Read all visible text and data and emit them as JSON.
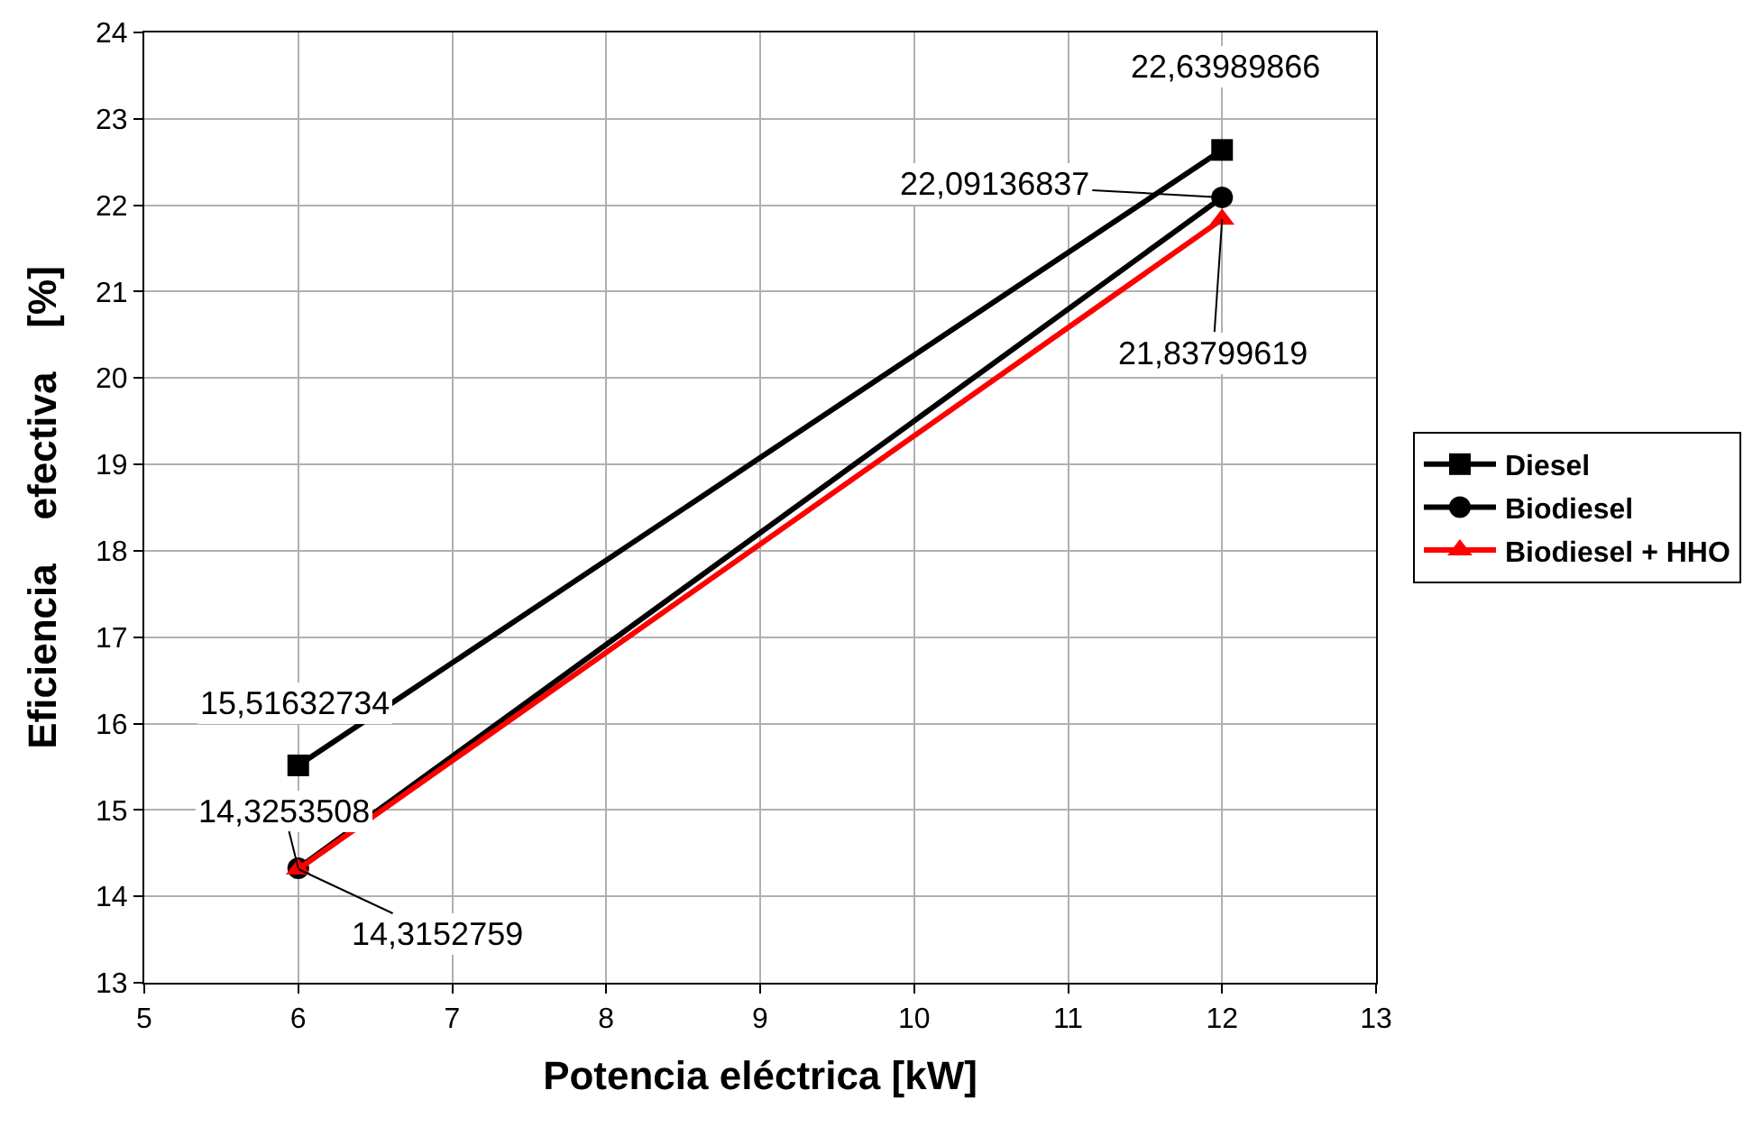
{
  "chart_data": {
    "type": "line",
    "xlabel": "Potencia eléctrica [kW]",
    "ylabel": "Eficiencia    efectiva    [%]",
    "x": [
      6,
      12
    ],
    "series": [
      {
        "name": "Diesel",
        "color": "#000000",
        "marker": "square",
        "values": [
          15.51632734,
          22.63989866
        ],
        "value_labels": [
          "15,51632734",
          "22,63989866"
        ]
      },
      {
        "name": "Biodiesel",
        "color": "#000000",
        "marker": "circle",
        "values": [
          14.3253508,
          22.09136837
        ],
        "value_labels": [
          "14,3253508",
          "22,09136837"
        ]
      },
      {
        "name": "Biodiesel + HHO",
        "color": "#ff0000",
        "marker": "triangle",
        "values": [
          14.3152759,
          21.83799619
        ],
        "value_labels": [
          "14,3152759",
          "21,83799619"
        ]
      }
    ],
    "xlim": [
      5,
      13
    ],
    "xticks": [
      5,
      6,
      7,
      8,
      9,
      10,
      11,
      12,
      13
    ],
    "ylim": [
      13,
      24
    ],
    "yticks": [
      13,
      14,
      15,
      16,
      17,
      18,
      19,
      20,
      21,
      22,
      23,
      24
    ],
    "grid": true,
    "legend": "right",
    "line_style": "solid"
  }
}
